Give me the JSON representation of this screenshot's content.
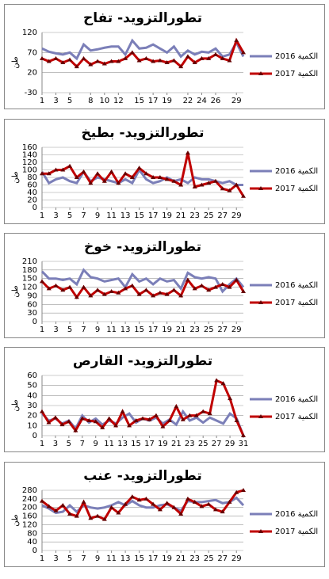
{
  "chart_data": [
    {
      "type": "line",
      "title": "تطورالتزويد- تفاح",
      "ylabel": "طن",
      "x": [
        1,
        2,
        3,
        4,
        5,
        6,
        7,
        8,
        9,
        10,
        11,
        12,
        13,
        14,
        15,
        16,
        17,
        18,
        19,
        20,
        21,
        22,
        23,
        24,
        25,
        26,
        27,
        28,
        29,
        30
      ],
      "xlim": [
        1,
        30
      ],
      "xticks": [
        1,
        3,
        5,
        8,
        10,
        12,
        15,
        17,
        19,
        22,
        24,
        26,
        29
      ],
      "ylim": [
        -30,
        120
      ],
      "yticks": [
        -30,
        20,
        70,
        120
      ],
      "grid": true,
      "series": [
        {
          "name": "الكمية 2016",
          "color": "#7b7fb8",
          "values": [
            80,
            72,
            68,
            65,
            70,
            55,
            90,
            75,
            78,
            82,
            85,
            85,
            65,
            100,
            80,
            82,
            90,
            80,
            70,
            85,
            60,
            75,
            65,
            72,
            70,
            80,
            60,
            65,
            95,
            60
          ]
        },
        {
          "name": "الكمية 2017",
          "color": "#c00000",
          "marker": "triangle",
          "values": [
            55,
            48,
            55,
            45,
            52,
            35,
            55,
            40,
            48,
            42,
            48,
            48,
            55,
            70,
            50,
            55,
            48,
            50,
            45,
            50,
            35,
            60,
            45,
            55,
            55,
            65,
            55,
            50,
            100,
            70
          ]
        }
      ]
    },
    {
      "type": "line",
      "title": "تطورالتزويد- بطيخ",
      "ylabel": "طن",
      "x": [
        1,
        2,
        3,
        4,
        5,
        6,
        7,
        8,
        9,
        10,
        11,
        12,
        13,
        14,
        15,
        16,
        17,
        18,
        19,
        20,
        21,
        22,
        23,
        24,
        25,
        26,
        27,
        28,
        29,
        30
      ],
      "xlim": [
        1,
        30
      ],
      "xticks": [
        1,
        3,
        5,
        7,
        9,
        11,
        13,
        15,
        17,
        19,
        21,
        23,
        25,
        27,
        29
      ],
      "ylim": [
        0,
        160
      ],
      "yticks": [
        0,
        20,
        40,
        60,
        80,
        100,
        120,
        140,
        160
      ],
      "grid": true,
      "series": [
        {
          "name": "الكمية 2016",
          "color": "#7b7fb8",
          "values": [
            95,
            65,
            75,
            80,
            70,
            65,
            95,
            70,
            80,
            75,
            70,
            65,
            75,
            65,
            100,
            75,
            65,
            70,
            80,
            70,
            75,
            65,
            80,
            75,
            75,
            70,
            65,
            70,
            60,
            60
          ]
        },
        {
          "name": "الكمية 2017",
          "color": "#c00000",
          "marker": "triangle",
          "values": [
            90,
            90,
            100,
            100,
            110,
            80,
            95,
            65,
            90,
            70,
            95,
            65,
            90,
            80,
            105,
            90,
            80,
            80,
            75,
            70,
            60,
            145,
            55,
            60,
            65,
            70,
            50,
            45,
            60,
            30
          ]
        }
      ]
    },
    {
      "type": "line",
      "title": "تطورالتزويد- خوخ",
      "ylabel": "طن",
      "x": [
        1,
        2,
        3,
        4,
        5,
        6,
        7,
        8,
        9,
        10,
        11,
        12,
        13,
        14,
        15,
        16,
        17,
        18,
        19,
        20,
        21,
        22,
        23,
        24,
        25,
        26,
        27,
        28,
        29,
        30
      ],
      "xlim": [
        1,
        30
      ],
      "xticks": [
        1,
        3,
        5,
        7,
        9,
        11,
        13,
        15,
        17,
        19,
        21,
        23,
        25,
        27,
        29
      ],
      "ylim": [
        0,
        210
      ],
      "yticks": [
        0,
        30,
        60,
        90,
        120,
        150,
        180,
        210
      ],
      "grid": true,
      "series": [
        {
          "name": "الكمية 2016",
          "color": "#7b7fb8",
          "values": [
            175,
            150,
            150,
            145,
            150,
            130,
            180,
            155,
            150,
            140,
            145,
            150,
            120,
            165,
            140,
            150,
            130,
            150,
            140,
            145,
            115,
            170,
            155,
            150,
            155,
            150,
            105,
            130,
            150,
            120
          ]
        },
        {
          "name": "الكمية 2017",
          "color": "#c00000",
          "marker": "triangle",
          "values": [
            140,
            115,
            125,
            110,
            120,
            85,
            120,
            90,
            110,
            95,
            105,
            100,
            115,
            125,
            95,
            110,
            90,
            100,
            95,
            110,
            90,
            145,
            115,
            125,
            110,
            120,
            130,
            120,
            145,
            105
          ]
        }
      ]
    },
    {
      "type": "line",
      "title": "تطورالتزويد- القارص",
      "ylabel": "طن",
      "x": [
        1,
        2,
        3,
        4,
        5,
        6,
        7,
        8,
        9,
        10,
        11,
        12,
        13,
        14,
        15,
        16,
        17,
        18,
        19,
        20,
        21,
        22,
        23,
        24,
        25,
        26,
        27,
        28,
        29,
        30,
        31
      ],
      "xlim": [
        1,
        31
      ],
      "xticks": [
        1,
        3,
        5,
        7,
        9,
        11,
        13,
        15,
        17,
        19,
        21,
        23,
        25,
        27,
        29,
        31
      ],
      "ylim": [
        0,
        60
      ],
      "yticks": [
        0,
        10,
        20,
        30,
        40,
        50,
        60
      ],
      "grid": true,
      "series": [
        {
          "name": "الكمية 2016",
          "color": "#7b7fb8",
          "values": [
            22,
            15,
            17,
            12,
            15,
            7,
            20,
            13,
            17,
            11,
            15,
            12,
            18,
            22,
            13,
            17,
            15,
            18,
            12,
            16,
            11,
            24,
            15,
            18,
            13,
            18,
            15,
            12,
            22,
            17,
            0
          ]
        },
        {
          "name": "الكمية 2017",
          "color": "#c00000",
          "marker": "triangle",
          "values": [
            24,
            13,
            18,
            11,
            14,
            5,
            17,
            15,
            14,
            8,
            17,
            10,
            24,
            10,
            15,
            17,
            16,
            20,
            9,
            15,
            29,
            16,
            20,
            20,
            24,
            22,
            55,
            52,
            37,
            15,
            0
          ]
        }
      ]
    },
    {
      "type": "line",
      "title": "تطورالتزويد- عنب",
      "ylabel": "طن",
      "x": [
        1,
        2,
        3,
        4,
        5,
        6,
        7,
        8,
        9,
        10,
        11,
        12,
        13,
        14,
        15,
        16,
        17,
        18,
        19,
        20,
        21,
        22,
        23,
        24,
        25,
        26,
        27,
        28,
        29,
        30
      ],
      "xlim": [
        1,
        30
      ],
      "xticks": [
        1,
        3,
        5,
        7,
        9,
        11,
        13,
        15,
        17,
        19,
        21,
        23,
        25,
        27,
        29
      ],
      "ylim": [
        0,
        280
      ],
      "yticks": [
        0,
        40,
        80,
        120,
        160,
        200,
        240,
        280
      ],
      "grid": true,
      "series": [
        {
          "name": "الكمية 2016",
          "color": "#7b7fb8",
          "values": [
            210,
            195,
            175,
            180,
            210,
            180,
            210,
            200,
            195,
            200,
            210,
            225,
            210,
            230,
            210,
            200,
            200,
            210,
            215,
            200,
            185,
            230,
            225,
            225,
            230,
            235,
            220,
            225,
            245,
            210
          ]
        },
        {
          "name": "الكمية 2017",
          "color": "#c00000",
          "marker": "triangle",
          "values": [
            230,
            205,
            185,
            210,
            170,
            160,
            225,
            150,
            160,
            145,
            200,
            175,
            215,
            250,
            235,
            240,
            215,
            190,
            220,
            200,
            170,
            240,
            225,
            205,
            215,
            190,
            180,
            225,
            270,
            280
          ]
        }
      ]
    }
  ]
}
